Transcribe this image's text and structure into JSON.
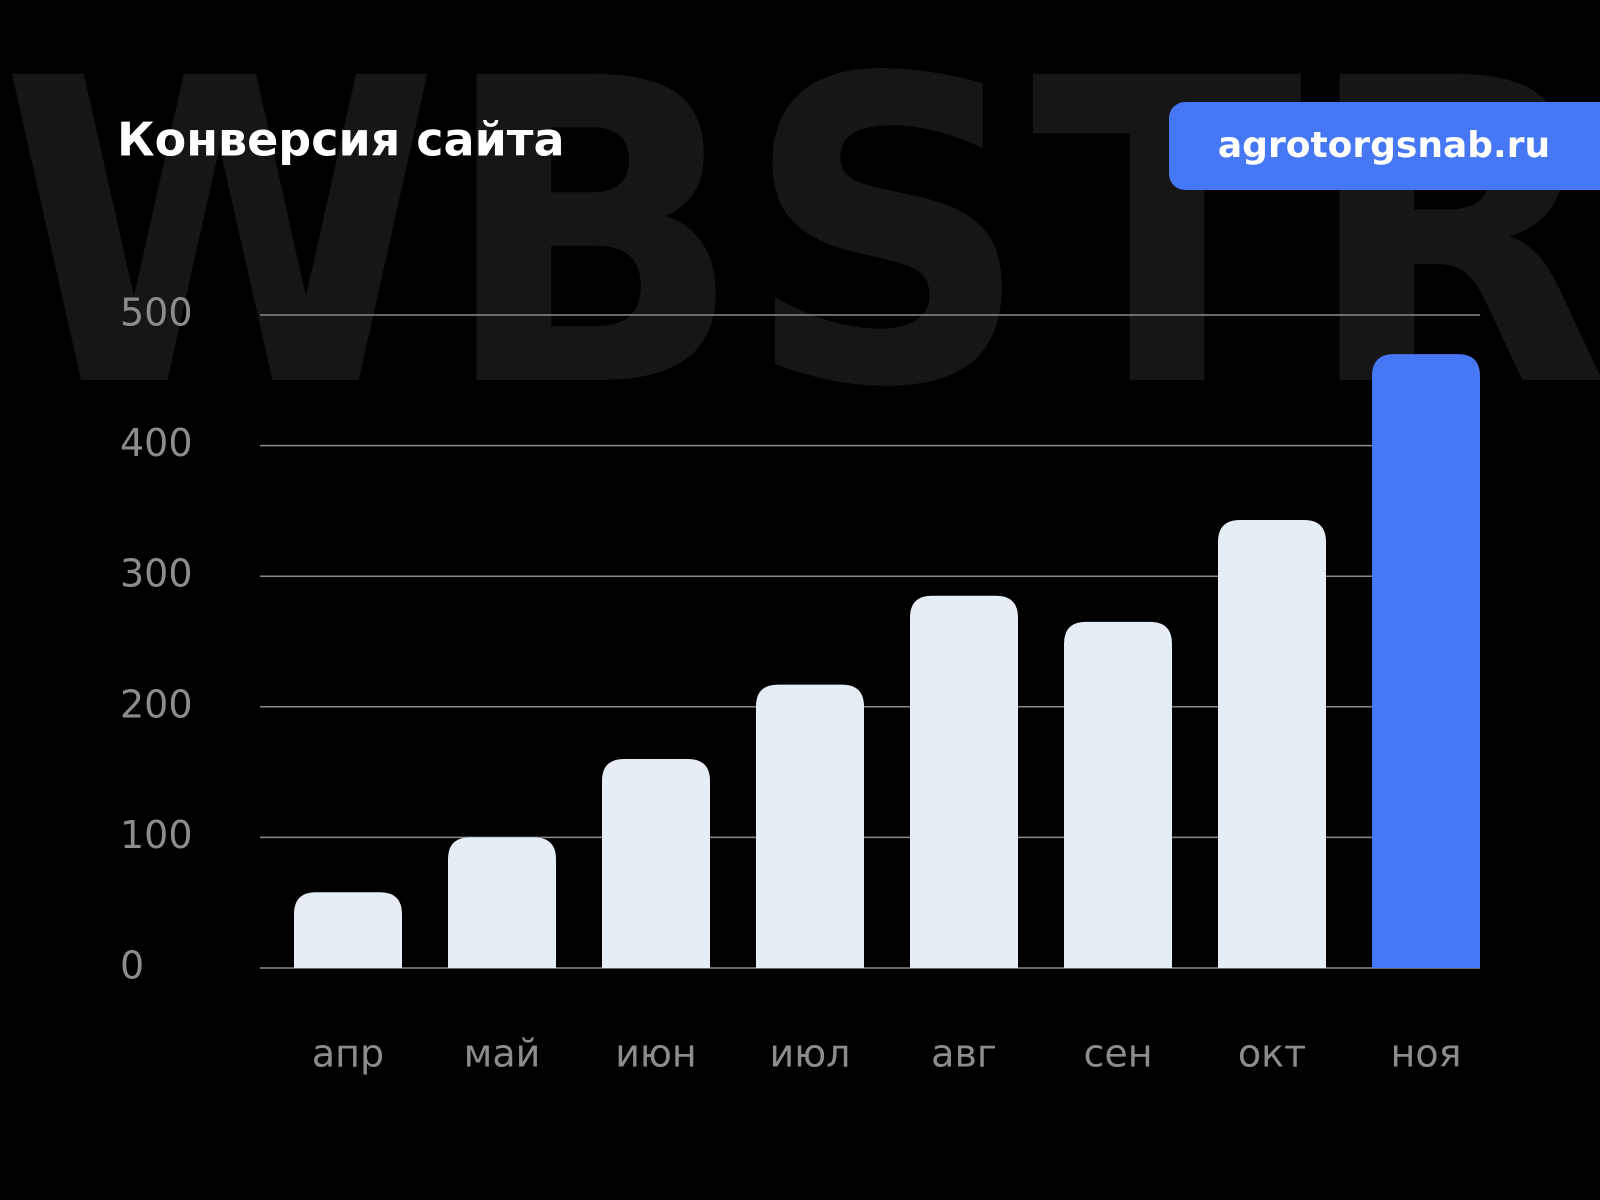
{
  "chart_data": {
    "type": "bar",
    "title": "Конверсия сайта",
    "badge": "agrotorgsnab.ru",
    "watermark": "WBSTR",
    "categories": [
      "апр",
      "май",
      "июн",
      "июл",
      "авг",
      "сен",
      "окт",
      "ноя"
    ],
    "values": [
      58,
      100,
      160,
      217,
      285,
      265,
      343,
      470
    ],
    "colors": [
      "#e6edf5",
      "#e6edf5",
      "#e6edf5",
      "#e6edf5",
      "#e6edf5",
      "#e6edf5",
      "#e6edf5",
      "#4677f5"
    ],
    "ylim": [
      0,
      500
    ],
    "yticks": [
      0,
      100,
      200,
      300,
      400,
      500
    ],
    "grid": true
  }
}
